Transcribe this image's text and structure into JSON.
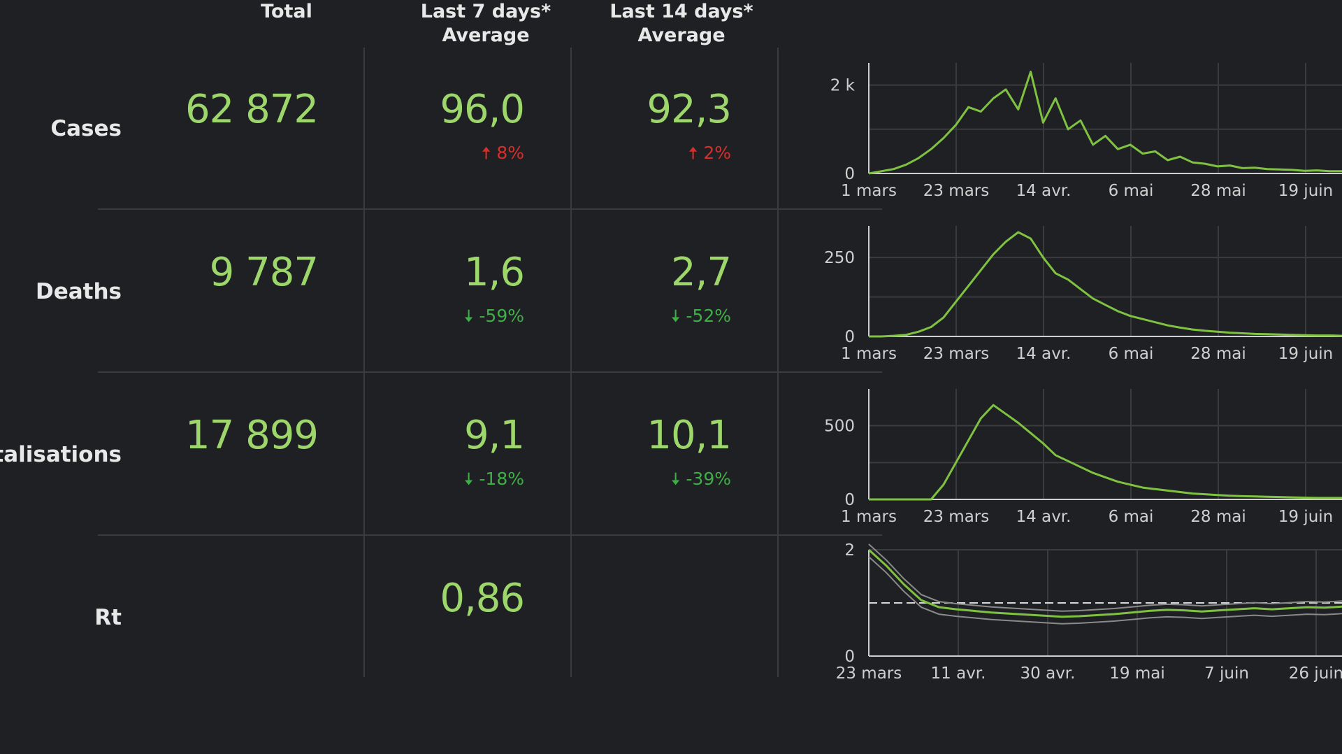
{
  "headers": {
    "total": "Total",
    "last7_line1": "Last 7 days*",
    "last7_line2": "Average",
    "last14_line1": "Last 14 days*",
    "last14_line2": "Average"
  },
  "rows": [
    {
      "label": "Cases",
      "total": "62 872",
      "avg7": "96,0",
      "avg7_change": "8%",
      "avg7_dir": "up",
      "avg14": "92,3",
      "avg14_change": "2%",
      "avg14_dir": "up"
    },
    {
      "label": "Deaths",
      "total": "9 787",
      "avg7": "1,6",
      "avg7_change": "-59%",
      "avg7_dir": "down",
      "avg14": "2,7",
      "avg14_change": "-52%",
      "avg14_dir": "down"
    },
    {
      "label": "italisations",
      "total": "17 899",
      "avg7": "9,1",
      "avg7_change": "-18%",
      "avg7_dir": "down",
      "avg14": "10,1",
      "avg14_change": "-39%",
      "avg14_dir": "down"
    },
    {
      "label": "Rt",
      "total": "",
      "avg7": "0,86",
      "avg14": ""
    }
  ],
  "colors": {
    "background": "#1f2023",
    "value_green": "#9dd66a",
    "line_green": "#7fc241",
    "increase_red": "#d2302c",
    "decrease_green": "#3fae46",
    "grid": "#3a3b3e"
  },
  "chart_data": [
    {
      "type": "line",
      "x_ticks": [
        "1 mars",
        "23 mars",
        "14 avr.",
        "6 mai",
        "28 mai",
        "19 juin"
      ],
      "y_ticks": [
        "0",
        "2 k"
      ],
      "ylim": [
        0,
        2500
      ],
      "series": [
        {
          "x_start": "1 mars",
          "step_days": 3,
          "values": [
            0,
            50,
            100,
            200,
            350,
            550,
            800,
            1100,
            1500,
            1400,
            1700,
            1900,
            1450,
            2300,
            1150,
            1700,
            1000,
            1200,
            650,
            850,
            550,
            650,
            450,
            500,
            300,
            380,
            250,
            220,
            160,
            180,
            120,
            130,
            100,
            90,
            80,
            60,
            70,
            50,
            50
          ]
        }
      ],
      "grid": true
    },
    {
      "type": "line",
      "x_ticks": [
        "1 mars",
        "23 mars",
        "14 avr.",
        "6 mai",
        "28 mai",
        "19 juin"
      ],
      "y_ticks": [
        "0",
        "250"
      ],
      "ylim": [
        0,
        350
      ],
      "series": [
        {
          "x_start": "1 mars",
          "step_days": 3,
          "values": [
            0,
            0,
            2,
            5,
            15,
            30,
            60,
            110,
            160,
            210,
            260,
            300,
            330,
            310,
            250,
            200,
            180,
            150,
            120,
            100,
            80,
            65,
            55,
            45,
            35,
            28,
            22,
            18,
            15,
            12,
            10,
            8,
            7,
            6,
            5,
            4,
            3,
            3,
            2
          ]
        }
      ],
      "grid": true
    },
    {
      "type": "line",
      "x_ticks": [
        "1 mars",
        "23 mars",
        "14 avr.",
        "6 mai",
        "28 mai",
        "19 juin"
      ],
      "y_ticks": [
        "0",
        "500"
      ],
      "ylim": [
        0,
        750
      ],
      "series": [
        {
          "x_start": "1 mars",
          "step_days": 3,
          "values": [
            0,
            0,
            0,
            0,
            0,
            0,
            100,
            250,
            400,
            550,
            640,
            580,
            520,
            450,
            380,
            300,
            260,
            220,
            180,
            150,
            120,
            100,
            80,
            70,
            60,
            50,
            40,
            35,
            30,
            25,
            22,
            20,
            18,
            16,
            14,
            12,
            10,
            10,
            10
          ]
        }
      ],
      "grid": true
    },
    {
      "type": "line",
      "x_ticks": [
        "23 mars",
        "11 avr.",
        "30 avr.",
        "19 mai",
        "7 juin",
        "26 juin"
      ],
      "y_ticks": [
        "0",
        "2"
      ],
      "ylim": [
        0,
        2
      ],
      "reference_line": 1,
      "series": [
        {
          "x_start": "23 mars",
          "step_days": 3,
          "values": [
            2.0,
            1.7,
            1.35,
            1.05,
            0.92,
            0.88,
            0.85,
            0.82,
            0.8,
            0.78,
            0.76,
            0.74,
            0.75,
            0.77,
            0.79,
            0.82,
            0.85,
            0.87,
            0.86,
            0.84,
            0.86,
            0.88,
            0.9,
            0.88,
            0.9,
            0.92,
            0.91,
            0.93
          ]
        }
      ],
      "grid": true
    }
  ]
}
